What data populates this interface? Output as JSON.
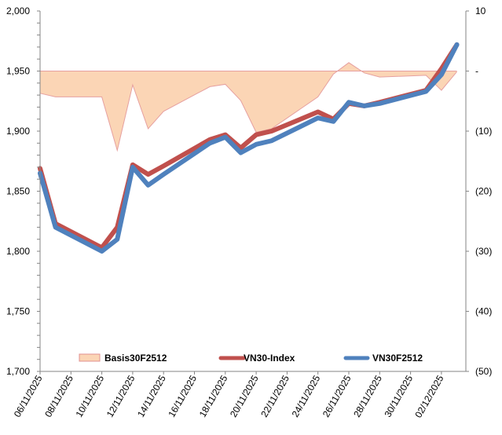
{
  "chart_data": {
    "type": "line",
    "title": "",
    "xlabel": "",
    "ylabel": "",
    "y2label": "",
    "ylim": [
      1700,
      2000
    ],
    "y2lim": [
      -50,
      10
    ],
    "left_ticks": [
      "1,700",
      "1,750",
      "1,800",
      "1,850",
      "1,900",
      "1,950",
      "2,000"
    ],
    "left_tick_values": [
      1700,
      1750,
      1800,
      1850,
      1900,
      1950,
      2000
    ],
    "right_ticks": [
      "(50)",
      "(40)",
      "(30)",
      "(20)",
      "(10)",
      "-",
      "10"
    ],
    "right_tick_values": [
      -50,
      -40,
      -30,
      -20,
      -10,
      0,
      10
    ],
    "x_tick_labels": [
      "06/11/2025",
      "08/11/2025",
      "10/11/2025",
      "12/11/2025",
      "14/11/2025",
      "16/11/2025",
      "18/11/2025",
      "20/11/2025",
      "22/11/2025",
      "24/11/2025",
      "26/11/2025",
      "28/11/2025",
      "30/11/2025",
      "02/12/2025"
    ],
    "x_day_start": "06/11/2025",
    "x": [
      0,
      1,
      4,
      5,
      6,
      7,
      8,
      11,
      12,
      13,
      14,
      15,
      18,
      19,
      20,
      21,
      22,
      25,
      26,
      27
    ],
    "legend_position": "bottom",
    "series": [
      {
        "name": "Basis30F2512",
        "type": "area",
        "axis": "right",
        "color": "#FBD5B5",
        "edge": "#E6A0A0",
        "values": [
          -3.7,
          -4.3,
          -4.3,
          -13.2,
          -2.3,
          -9.6,
          -6.7,
          -2.6,
          -2.2,
          -4.9,
          -10.2,
          -9.6,
          -4.3,
          -0.5,
          1.4,
          -0.3,
          -1.0,
          -0.7,
          -3.2,
          -0.1
        ]
      },
      {
        "name": "VN30-Index",
        "type": "line",
        "axis": "left",
        "color": "#C0504D",
        "values": [
          1869,
          1823,
          1803,
          1820,
          1872,
          1864,
          1871,
          1893,
          1897,
          1886,
          1897,
          1900,
          1916,
          1910,
          1923,
          1921,
          1924,
          1934,
          1952,
          1972
        ]
      },
      {
        "name": "VN30F2512",
        "type": "line",
        "axis": "left",
        "color": "#4F81BD",
        "values": [
          1865,
          1820,
          1800,
          1810,
          1870,
          1855,
          1864,
          1890,
          1895,
          1882,
          1889,
          1892,
          1911,
          1908,
          1924,
          1921,
          1923,
          1933,
          1947,
          1972
        ]
      }
    ]
  }
}
